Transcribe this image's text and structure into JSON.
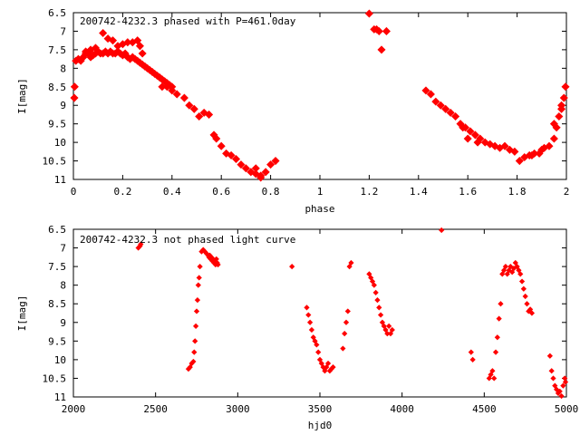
{
  "chart_data": [
    {
      "type": "scatter",
      "title": "200742-4232.3 phased with P=461.0day",
      "xlabel": "phase",
      "ylabel": "I[mag]",
      "xlim": [
        0,
        2
      ],
      "ylim": [
        6.5,
        11
      ],
      "y_inverted": true,
      "x_ticks": [
        "0",
        "0.2",
        "0.4",
        "0.6",
        "0.8",
        "1",
        "1.2",
        "1.4",
        "1.6",
        "1.8",
        "2"
      ],
      "y_ticks": [
        "6.5",
        "7",
        "7.5",
        "8",
        "8.5",
        "9",
        "9.5",
        "10",
        "10.5",
        "11"
      ],
      "point_color": "#ff0000",
      "series": [
        {
          "x": [
            0.0,
            0.005,
            0.01,
            0.02,
            0.03,
            0.04,
            0.05,
            0.06,
            0.07,
            0.08,
            0.09,
            0.1,
            0.11,
            0.12,
            0.13,
            0.14,
            0.15,
            0.16,
            0.17,
            0.18,
            0.19,
            0.2,
            0.21,
            0.22,
            0.23,
            0.24,
            0.25,
            0.26,
            0.27,
            0.28,
            0.29,
            0.3,
            0.31,
            0.32,
            0.33,
            0.34,
            0.35,
            0.36,
            0.37,
            0.38,
            0.39,
            0.4,
            0.12,
            0.14,
            0.16,
            0.18,
            0.2,
            0.22,
            0.24,
            0.26,
            0.27,
            0.28,
            0.05,
            0.07,
            0.09,
            0.36,
            0.38,
            0.4,
            0.42,
            0.45,
            0.47,
            0.49,
            0.51,
            0.53,
            0.55,
            0.57,
            0.58,
            0.6,
            0.62,
            0.64,
            0.66,
            0.68,
            0.7,
            0.72,
            0.74,
            0.76,
            0.78,
            0.8,
            0.82,
            0.76,
            0.74,
            1.2,
            1.22,
            1.23,
            1.24,
            1.25,
            1.27,
            1.43,
            1.45,
            1.47,
            1.49,
            1.51,
            1.53,
            1.55,
            1.57,
            1.59,
            1.61,
            1.63,
            1.65,
            1.67,
            1.69,
            1.71,
            1.73,
            1.75,
            1.77,
            1.79,
            1.81,
            1.83,
            1.85,
            1.87,
            1.89,
            1.91,
            1.93,
            1.95,
            1.96,
            1.97,
            1.98,
            1.99,
            2.0,
            1.6,
            1.64,
            1.58,
            1.86,
            1.9,
            1.95,
            1.98
          ],
          "y": [
            8.8,
            8.5,
            7.8,
            7.75,
            7.8,
            7.7,
            7.55,
            7.6,
            7.7,
            7.65,
            7.6,
            7.55,
            7.6,
            7.6,
            7.55,
            7.6,
            7.55,
            7.6,
            7.6,
            7.55,
            7.6,
            7.65,
            7.6,
            7.7,
            7.75,
            7.7,
            7.75,
            7.8,
            7.85,
            7.9,
            7.95,
            8.0,
            8.05,
            8.1,
            8.15,
            8.2,
            8.25,
            8.3,
            8.35,
            8.4,
            8.45,
            8.5,
            7.05,
            7.2,
            7.25,
            7.4,
            7.35,
            7.3,
            7.3,
            7.25,
            7.4,
            7.6,
            7.6,
            7.5,
            7.45,
            8.5,
            8.5,
            8.6,
            8.7,
            8.8,
            9.0,
            9.1,
            9.3,
            9.2,
            9.25,
            9.8,
            9.9,
            10.1,
            10.3,
            10.35,
            10.45,
            10.6,
            10.7,
            10.8,
            10.85,
            10.9,
            10.8,
            10.6,
            10.5,
            10.95,
            10.7,
            6.5,
            6.95,
            6.95,
            7.0,
            7.5,
            7.0,
            8.6,
            8.7,
            8.9,
            9.0,
            9.1,
            9.2,
            9.3,
            9.5,
            9.6,
            9.7,
            9.8,
            9.9,
            10.0,
            10.05,
            10.1,
            10.15,
            10.1,
            10.2,
            10.25,
            10.5,
            10.4,
            10.35,
            10.3,
            10.3,
            10.15,
            10.1,
            9.9,
            9.6,
            9.3,
            9.1,
            8.8,
            8.5,
            9.9,
            10.0,
            9.6,
            10.35,
            10.2,
            9.5,
            9.0
          ]
        }
      ]
    },
    {
      "type": "scatter",
      "title": "200742-4232.3 not phased light curve",
      "xlabel": "hjd0",
      "ylabel": "I[mag]",
      "xlim": [
        2000,
        5000
      ],
      "ylim": [
        6.5,
        11
      ],
      "y_inverted": true,
      "x_ticks": [
        "2000",
        "2500",
        "3000",
        "3500",
        "4000",
        "4500",
        "5000"
      ],
      "y_ticks": [
        "6.5",
        "7",
        "7.5",
        "8",
        "8.5",
        "9",
        "9.5",
        "10",
        "10.5",
        "11"
      ],
      "point_color": "#ff0000",
      "series": [
        {
          "x": [
            2395,
            2405,
            2410,
            2700,
            2710,
            2720,
            2730,
            2735,
            2740,
            2745,
            2750,
            2755,
            2760,
            2765,
            2770,
            2780,
            2790,
            2800,
            2810,
            2820,
            2825,
            2830,
            2835,
            2840,
            2845,
            2850,
            2855,
            2860,
            2865,
            2870,
            2875,
            2880,
            3330,
            3420,
            3430,
            3440,
            3450,
            3460,
            3470,
            3480,
            3490,
            3500,
            3510,
            3520,
            3530,
            3540,
            3550,
            3560,
            3570,
            3580,
            3640,
            3650,
            3660,
            3670,
            3680,
            3690,
            3800,
            3810,
            3820,
            3830,
            3840,
            3850,
            3860,
            3870,
            3880,
            3890,
            3900,
            3910,
            3920,
            3930,
            3940,
            4240,
            4420,
            4430,
            4530,
            4540,
            4550,
            4560,
            4570,
            4580,
            4590,
            4600,
            4610,
            4620,
            4630,
            4640,
            4650,
            4660,
            4670,
            4680,
            4690,
            4700,
            4710,
            4720,
            4730,
            4740,
            4750,
            4760,
            4770,
            4780,
            4790,
            4900,
            4910,
            4920,
            4930,
            4940,
            4950,
            4960,
            4970,
            4980,
            4990,
            5000
          ],
          "y": [
            7.0,
            6.95,
            6.9,
            10.25,
            10.2,
            10.1,
            10.05,
            9.8,
            9.5,
            9.1,
            8.7,
            8.4,
            8.0,
            7.8,
            7.5,
            7.1,
            7.05,
            7.1,
            7.15,
            7.2,
            7.25,
            7.2,
            7.3,
            7.25,
            7.35,
            7.3,
            7.4,
            7.35,
            7.45,
            7.3,
            7.4,
            7.45,
            7.5,
            8.6,
            8.8,
            9.0,
            9.2,
            9.4,
            9.5,
            9.6,
            9.8,
            10.0,
            10.1,
            10.2,
            10.3,
            10.2,
            10.1,
            10.3,
            10.25,
            10.2,
            9.7,
            9.3,
            9.0,
            8.7,
            7.5,
            7.4,
            7.7,
            7.8,
            7.9,
            8.0,
            8.2,
            8.4,
            8.6,
            8.8,
            9.0,
            9.1,
            9.2,
            9.3,
            9.1,
            9.3,
            9.2,
            6.5,
            9.8,
            10.0,
            10.5,
            10.4,
            10.3,
            10.5,
            9.8,
            9.4,
            8.9,
            8.5,
            7.7,
            7.6,
            7.5,
            7.7,
            7.6,
            7.5,
            7.65,
            7.55,
            7.4,
            7.5,
            7.6,
            7.7,
            7.9,
            8.1,
            8.3,
            8.5,
            8.7,
            8.65,
            8.75,
            9.9,
            10.3,
            10.5,
            10.7,
            10.8,
            10.9,
            10.85,
            11.0,
            10.7,
            10.5,
            10.6
          ]
        }
      ]
    }
  ]
}
